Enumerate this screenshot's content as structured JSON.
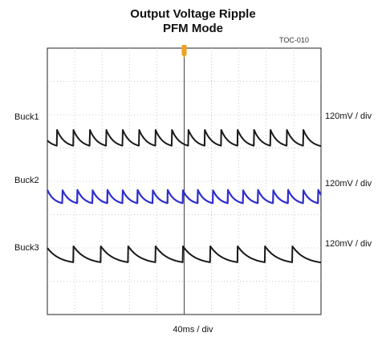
{
  "chart_data": {
    "type": "line",
    "title": "Output Voltage Ripple",
    "subtitle": "PFM Mode",
    "figure_id": "TOC-010",
    "xlabel": "40ms / div",
    "x_divisions": 10,
    "y_divisions": 8,
    "grid": true,
    "trigger_marker_color": "#f0a020",
    "x_unit": "div",
    "y_unit": "div",
    "series": [
      {
        "name": "Buck1",
        "scale": "120mV / div",
        "color": "#1a1a1a",
        "baseline_div": 5.2,
        "ripple_div": 0.55,
        "jump_x_div": [
          0.35,
          0.95,
          1.55,
          2.15,
          2.75,
          3.35,
          3.95,
          4.55,
          5.15,
          5.75,
          6.35,
          6.95,
          7.55,
          8.15,
          8.75,
          9.35
        ]
      },
      {
        "name": "Buck2",
        "scale": "120mV / div",
        "color": "#2f2fcc",
        "baseline_div": 3.45,
        "ripple_div": 0.45,
        "jump_x_div": [
          0.55,
          1.1,
          1.65,
          2.2,
          2.75,
          3.3,
          3.85,
          4.4,
          4.95,
          5.5,
          6.05,
          6.6,
          7.15,
          7.7,
          8.25,
          8.8,
          9.35,
          9.9
        ]
      },
      {
        "name": "Buck3",
        "scale": "120mV / div",
        "color": "#1a1a1a",
        "baseline_div": 1.7,
        "ripple_div": 0.55,
        "jump_x_div": [
          0.95,
          1.95,
          2.95,
          3.95,
          4.95,
          5.95,
          6.95,
          7.95,
          8.95
        ]
      }
    ]
  }
}
